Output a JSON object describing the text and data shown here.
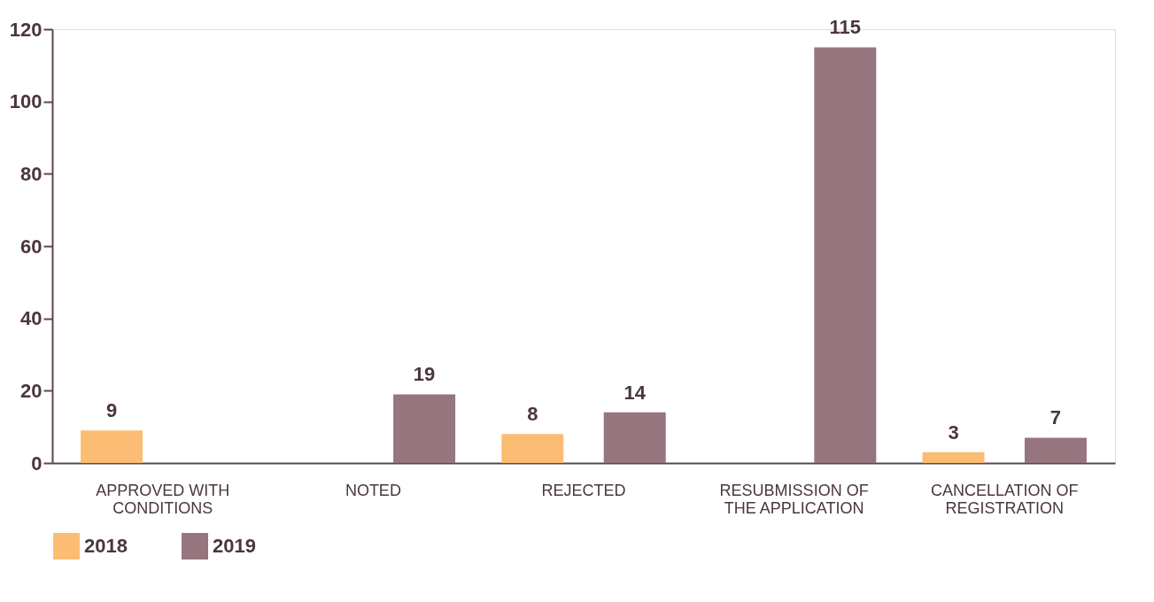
{
  "chart_data": {
    "type": "bar",
    "categories": [
      "APPROVED WITH\nCONDITIONS",
      "NOTED",
      "REJECTED",
      "RESUBMISSION OF\nTHE APPLICATION",
      "CANCELLATION OF\nREGISTRATION"
    ],
    "series": [
      {
        "name": "2018",
        "color": "#fbbd74",
        "values": [
          9,
          null,
          8,
          null,
          3
        ]
      },
      {
        "name": "2019",
        "color": "#96757e",
        "values": [
          null,
          19,
          14,
          115,
          7
        ]
      }
    ],
    "ylim": [
      0,
      120
    ],
    "yticks": [
      0,
      20,
      40,
      60,
      80,
      100,
      120
    ],
    "data_labels": true,
    "grid": false,
    "legend": "bottom"
  }
}
